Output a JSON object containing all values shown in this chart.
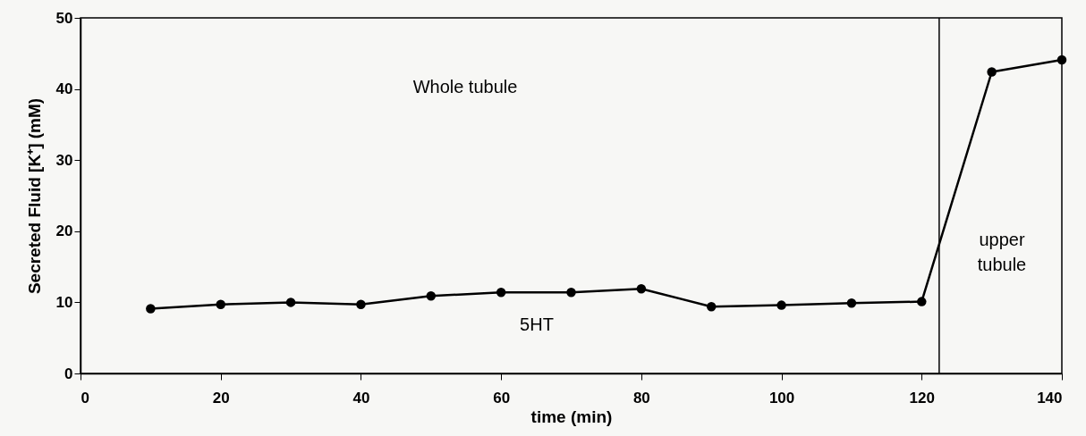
{
  "chart_data": {
    "type": "line",
    "xlabel": "time (min)",
    "ylabel": "Secreted Fluid [K⁺] (mM)",
    "x": [
      10,
      20,
      30,
      40,
      50,
      60,
      70,
      80,
      90,
      100,
      110,
      120,
      130,
      140
    ],
    "series": [
      {
        "color": "#000000",
        "values": [
          9.1,
          9.7,
          10.0,
          9.7,
          10.9,
          11.4,
          11.4,
          11.9,
          9.4,
          9.6,
          9.9,
          10.1,
          42.4,
          44.1
        ]
      }
    ],
    "xlim": [
      0,
      140
    ],
    "xticks": [
      0,
      20,
      40,
      60,
      80,
      100,
      120,
      140
    ],
    "ylim": [
      0,
      50
    ],
    "yticks": [
      0,
      10,
      20,
      30,
      40,
      50
    ],
    "grid": false,
    "marker": "circle",
    "line_style": "solid",
    "ref_lines": [
      {
        "axis": "x",
        "value": 122.5,
        "color": "#000000"
      }
    ],
    "annotations": [
      "Whole tubule",
      "5HT",
      "upper tubule"
    ]
  }
}
